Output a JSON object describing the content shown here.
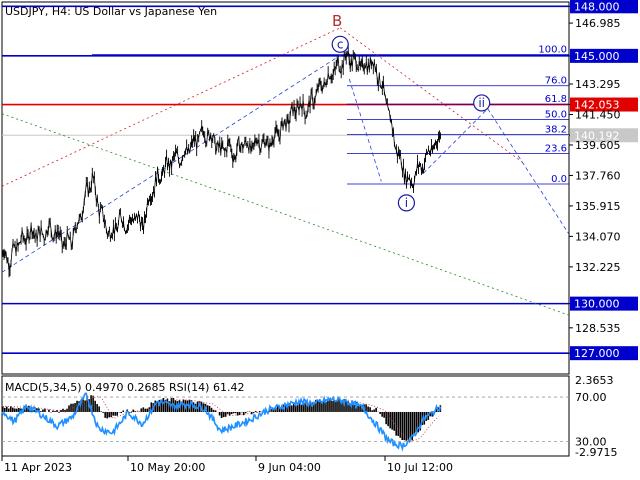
{
  "window": {
    "symbol_title": "USDJPY, H4:  US Dollar vs Japanese Yen"
  },
  "colors": {
    "background": "#ffffff",
    "frame": "#000000",
    "price_line": "#000000",
    "level_line": "#0000cc",
    "resistance_line": "#e00000",
    "current_price": "#c8c8c8",
    "macd_hist": "#000000",
    "rsi_line": "#1e90ff",
    "wave_label": "#1a1aa0",
    "wave_b_label": "#b03030",
    "channel_blue": "#2244cc",
    "channel_red": "#cc2222",
    "channel_green": "#228822"
  },
  "chart_data": [
    {
      "type": "line",
      "title": "USDJPY, H4:  US Dollar vs Japanese Yen",
      "ylim": [
        125.8,
        148.2
      ],
      "y_ticks": [
        {
          "label": "148.000",
          "value": 148.0,
          "boxed": true
        },
        {
          "label": "146.985",
          "value": 146.985
        },
        {
          "label": "145.000",
          "value": 145.0,
          "boxed": true
        },
        {
          "label": "143.295",
          "value": 143.295
        },
        {
          "label": "142.053",
          "value": 142.053,
          "boxed": true,
          "red": true
        },
        {
          "label": "141.450",
          "value": 141.45
        },
        {
          "label": "140.192",
          "value": 140.192,
          "boxed": true,
          "current": true
        },
        {
          "label": "139.605",
          "value": 139.605
        },
        {
          "label": "137.760",
          "value": 137.76
        },
        {
          "label": "135.915",
          "value": 135.915
        },
        {
          "label": "134.070",
          "value": 134.07
        },
        {
          "label": "132.225",
          "value": 132.225
        },
        {
          "label": "130.000",
          "value": 130.0,
          "boxed": true
        },
        {
          "label": "128.535",
          "value": 128.535
        },
        {
          "label": "127.000",
          "value": 127.0,
          "boxed": true
        }
      ],
      "x_ticks": [
        "11 Apr 2023",
        "10 May 20:00",
        "9 Jun 04:00",
        "10 Jul 12:00"
      ],
      "horizontal_levels": [
        {
          "value": 148.0,
          "kind": "blue"
        },
        {
          "value": 145.0,
          "kind": "blue"
        },
        {
          "value": 142.053,
          "kind": "red"
        },
        {
          "value": 130.0,
          "kind": "blue"
        },
        {
          "value": 127.0,
          "kind": "blue"
        }
      ],
      "fibonacci": {
        "high": 145.07,
        "low": 137.24,
        "levels": [
          {
            "label": "100.0",
            "ratio": 1.0
          },
          {
            "label": "76.0",
            "ratio": 0.76
          },
          {
            "label": "61.8",
            "ratio": 0.618
          },
          {
            "label": "50.0",
            "ratio": 0.5
          },
          {
            "label": "38.2",
            "ratio": 0.382
          },
          {
            "label": "23.6",
            "ratio": 0.236
          },
          {
            "label": "0.0",
            "ratio": 0.0
          }
        ]
      },
      "wave_labels": [
        {
          "text": "B",
          "circled": false,
          "bar": 334,
          "value": 147.05
        },
        {
          "text": "c",
          "circled": true,
          "bar": 337,
          "value": 145.7
        },
        {
          "text": "ii",
          "circled": true,
          "bar": 478,
          "value": 142.15
        },
        {
          "text": "i",
          "circled": true,
          "bar": 403,
          "value": 136.1
        }
      ],
      "price_path": [
        {
          "bar": 0,
          "value": 133.2
        },
        {
          "bar": 8,
          "value": 132.6
        },
        {
          "bar": 15,
          "value": 133.6
        },
        {
          "bar": 22,
          "value": 133.9
        },
        {
          "bar": 30,
          "value": 134.4
        },
        {
          "bar": 38,
          "value": 134.1
        },
        {
          "bar": 46,
          "value": 134.6
        },
        {
          "bar": 55,
          "value": 134.2
        },
        {
          "bar": 62,
          "value": 133.6
        },
        {
          "bar": 70,
          "value": 133.9
        },
        {
          "bar": 78,
          "value": 135.3
        },
        {
          "bar": 84,
          "value": 136.7
        },
        {
          "bar": 90,
          "value": 137.6
        },
        {
          "bar": 96,
          "value": 136.0
        },
        {
          "bar": 103,
          "value": 134.7
        },
        {
          "bar": 110,
          "value": 134.2
        },
        {
          "bar": 118,
          "value": 135.1
        },
        {
          "bar": 126,
          "value": 134.8
        },
        {
          "bar": 134,
          "value": 135.3
        },
        {
          "bar": 140,
          "value": 134.6
        },
        {
          "bar": 147,
          "value": 136.5
        },
        {
          "bar": 155,
          "value": 137.6
        },
        {
          "bar": 162,
          "value": 138.1
        },
        {
          "bar": 170,
          "value": 138.7
        },
        {
          "bar": 178,
          "value": 138.9
        },
        {
          "bar": 186,
          "value": 139.3
        },
        {
          "bar": 194,
          "value": 139.9
        },
        {
          "bar": 202,
          "value": 140.4
        },
        {
          "bar": 210,
          "value": 140.0
        },
        {
          "bar": 218,
          "value": 139.2
        },
        {
          "bar": 225,
          "value": 139.6
        },
        {
          "bar": 232,
          "value": 139.0
        },
        {
          "bar": 240,
          "value": 139.8
        },
        {
          "bar": 248,
          "value": 139.4
        },
        {
          "bar": 256,
          "value": 139.9
        },
        {
          "bar": 264,
          "value": 139.6
        },
        {
          "bar": 272,
          "value": 140.1
        },
        {
          "bar": 280,
          "value": 140.7
        },
        {
          "bar": 288,
          "value": 141.4
        },
        {
          "bar": 296,
          "value": 142.0
        },
        {
          "bar": 304,
          "value": 141.7
        },
        {
          "bar": 312,
          "value": 142.6
        },
        {
          "bar": 320,
          "value": 143.3
        },
        {
          "bar": 328,
          "value": 143.9
        },
        {
          "bar": 336,
          "value": 144.4
        },
        {
          "bar": 344,
          "value": 145.0
        },
        {
          "bar": 352,
          "value": 144.6
        },
        {
          "bar": 360,
          "value": 144.3
        },
        {
          "bar": 368,
          "value": 144.7
        },
        {
          "bar": 374,
          "value": 144.1
        },
        {
          "bar": 380,
          "value": 142.8
        },
        {
          "bar": 386,
          "value": 141.4
        },
        {
          "bar": 392,
          "value": 139.6
        },
        {
          "bar": 398,
          "value": 138.5
        },
        {
          "bar": 403,
          "value": 137.7
        },
        {
          "bar": 408,
          "value": 137.3
        },
        {
          "bar": 414,
          "value": 138.1
        },
        {
          "bar": 420,
          "value": 138.5
        },
        {
          "bar": 426,
          "value": 139.2
        },
        {
          "bar": 432,
          "value": 139.6
        },
        {
          "bar": 437,
          "value": 140.19
        }
      ],
      "x_range": [
        0,
        565
      ]
    },
    {
      "type": "bar",
      "title": "MACD(5,34,5) 0.4970 0.2685 RSI(14) 61.42",
      "macd_ylim": [
        -3.2,
        2.6
      ],
      "macd_ticks": [
        {
          "label": "2.3653",
          "value": 2.3653
        },
        {
          "label": "-2.9715",
          "value": -2.9715
        }
      ],
      "rsi_ticks": [
        {
          "label": "70.00",
          "value": 70
        },
        {
          "label": "30.00",
          "value": 30
        }
      ],
      "rsi_ylim": [
        18,
        88
      ],
      "macd_path": [
        {
          "bar": 0,
          "value": 0.4
        },
        {
          "bar": 30,
          "value": 0.3
        },
        {
          "bar": 55,
          "value": 0.0
        },
        {
          "bar": 78,
          "value": 0.9
        },
        {
          "bar": 90,
          "value": 1.2
        },
        {
          "bar": 103,
          "value": -0.5
        },
        {
          "bar": 118,
          "value": 0.0
        },
        {
          "bar": 140,
          "value": 0.2
        },
        {
          "bar": 155,
          "value": 0.9
        },
        {
          "bar": 178,
          "value": 0.9
        },
        {
          "bar": 202,
          "value": 0.6
        },
        {
          "bar": 218,
          "value": -0.3
        },
        {
          "bar": 240,
          "value": -0.1
        },
        {
          "bar": 264,
          "value": 0.1
        },
        {
          "bar": 288,
          "value": 0.6
        },
        {
          "bar": 312,
          "value": 0.8
        },
        {
          "bar": 336,
          "value": 0.9
        },
        {
          "bar": 360,
          "value": 0.5
        },
        {
          "bar": 374,
          "value": 0.1
        },
        {
          "bar": 386,
          "value": -1.2
        },
        {
          "bar": 398,
          "value": -2.2
        },
        {
          "bar": 408,
          "value": -2.0
        },
        {
          "bar": 420,
          "value": -0.9
        },
        {
          "bar": 437,
          "value": 0.5
        }
      ],
      "rsi_path": [
        {
          "bar": 0,
          "value": 58
        },
        {
          "bar": 12,
          "value": 48
        },
        {
          "bar": 25,
          "value": 62
        },
        {
          "bar": 38,
          "value": 55
        },
        {
          "bar": 55,
          "value": 44
        },
        {
          "bar": 70,
          "value": 52
        },
        {
          "bar": 84,
          "value": 72
        },
        {
          "bar": 96,
          "value": 42
        },
        {
          "bar": 110,
          "value": 38
        },
        {
          "bar": 126,
          "value": 56
        },
        {
          "bar": 140,
          "value": 46
        },
        {
          "bar": 155,
          "value": 66
        },
        {
          "bar": 170,
          "value": 62
        },
        {
          "bar": 186,
          "value": 64
        },
        {
          "bar": 202,
          "value": 60
        },
        {
          "bar": 218,
          "value": 40
        },
        {
          "bar": 232,
          "value": 44
        },
        {
          "bar": 248,
          "value": 50
        },
        {
          "bar": 264,
          "value": 58
        },
        {
          "bar": 280,
          "value": 62
        },
        {
          "bar": 296,
          "value": 66
        },
        {
          "bar": 312,
          "value": 64
        },
        {
          "bar": 328,
          "value": 68
        },
        {
          "bar": 344,
          "value": 66
        },
        {
          "bar": 360,
          "value": 60
        },
        {
          "bar": 374,
          "value": 44
        },
        {
          "bar": 386,
          "value": 30
        },
        {
          "bar": 398,
          "value": 26
        },
        {
          "bar": 408,
          "value": 32
        },
        {
          "bar": 420,
          "value": 50
        },
        {
          "bar": 437,
          "value": 61.42
        }
      ]
    }
  ]
}
